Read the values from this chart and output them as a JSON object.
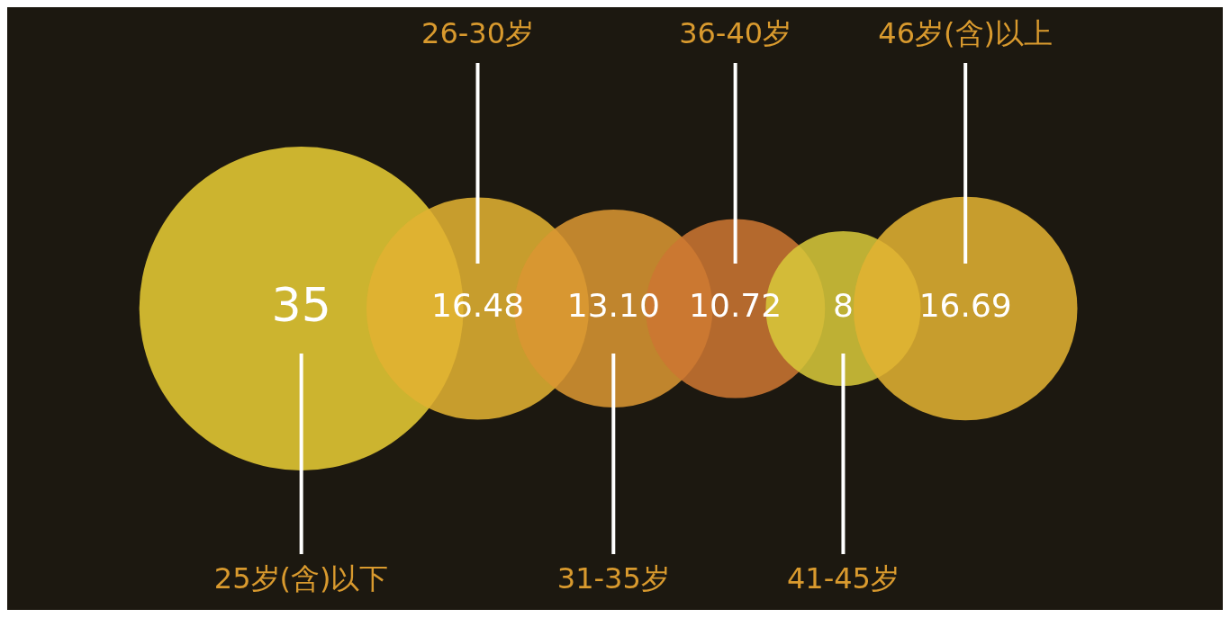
{
  "chart_data": {
    "type": "other",
    "categories": [
      "25岁(含)以下",
      "26-30岁",
      "31-35岁",
      "36-40岁",
      "41-45岁",
      "46岁(含)以上"
    ],
    "values": [
      35,
      16.48,
      13.1,
      10.72,
      8,
      16.69
    ],
    "colors": [
      "#e8cc34",
      "#e2b232",
      "#da9632",
      "#cc7632",
      "#d8c83a",
      "#e2b232"
    ],
    "value_labels": [
      "35",
      "16.48",
      "13.10",
      "10.72",
      "8",
      "16.69"
    ]
  }
}
